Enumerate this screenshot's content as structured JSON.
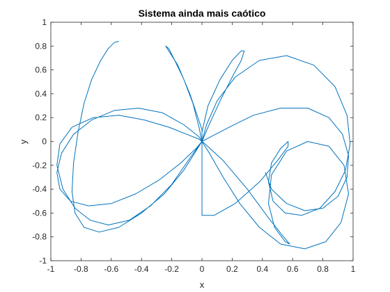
{
  "chart_data": {
    "type": "line",
    "title": "Sistema ainda mais caótico",
    "xlabel": "x",
    "ylabel": "y",
    "xlim": [
      -1,
      1
    ],
    "ylim": [
      -1,
      1
    ],
    "x_ticks": [
      -1,
      -0.8,
      -0.6,
      -0.4,
      -0.2,
      0,
      0.2,
      0.4,
      0.6,
      0.8,
      1
    ],
    "x_tick_labels": [
      "-1",
      "-0.8",
      "-0.6",
      "-0.4",
      "-0.2",
      "0",
      "0.2",
      "0.4",
      "0.6",
      "0.8",
      "1"
    ],
    "y_ticks": [
      -1,
      -0.8,
      -0.6,
      -0.4,
      -0.2,
      0,
      0.2,
      0.4,
      0.6,
      0.8,
      1
    ],
    "y_tick_labels": [
      "-1",
      "-0.8",
      "-0.6",
      "-0.4",
      "-0.2",
      "0",
      "0.2",
      "0.4",
      "0.6",
      "0.8",
      "1"
    ],
    "grid": false,
    "box": true,
    "series": [
      {
        "color": "#0072BD",
        "x": [
          -0.55,
          -0.58,
          -0.62,
          -0.67,
          -0.73,
          -0.78,
          -0.82,
          -0.85,
          -0.86,
          -0.84,
          -0.78,
          -0.68,
          -0.55,
          -0.4,
          -0.25,
          -0.12,
          -0.03,
          0.0,
          -0.02,
          -0.06,
          -0.12,
          -0.18,
          -0.22,
          -0.24,
          -0.22,
          -0.16,
          -0.08,
          0.0,
          0.0,
          0.05,
          0.14,
          0.25,
          0.38,
          0.52,
          0.68,
          0.82,
          0.92,
          0.97,
          0.94,
          0.84,
          0.7,
          0.56,
          0.46,
          0.44,
          0.48,
          0.55,
          0.58,
          0.54,
          0.44,
          0.3,
          0.14,
          0.02,
          0.0,
          -0.02,
          -0.1,
          -0.22,
          -0.38,
          -0.55,
          -0.72,
          -0.86,
          -0.94,
          -0.96,
          -0.92,
          -0.84,
          -0.74,
          -0.62,
          -0.48,
          -0.34,
          -0.2,
          -0.08,
          0.0,
          0.0,
          0.03,
          0.1,
          0.22,
          0.38,
          0.56,
          0.74,
          0.88,
          0.96,
          0.98,
          0.95,
          0.88,
          0.78,
          0.66,
          0.55,
          0.47,
          0.44,
          0.46,
          0.52,
          0.57,
          0.57,
          0.5,
          0.38,
          0.22,
          0.08,
          0.0,
          0.0,
          -0.04,
          -0.14,
          -0.28,
          -0.44,
          -0.6,
          -0.75,
          -0.87,
          -0.94,
          -0.96,
          -0.93,
          -0.85,
          -0.73,
          -0.58,
          -0.42,
          -0.26,
          -0.12,
          -0.02,
          0.0,
          0.0,
          0.04,
          0.12,
          0.2,
          0.26,
          0.28,
          0.26,
          0.2,
          0.12,
          0.04,
          0.0,
          0.0,
          0.06,
          0.18,
          0.34,
          0.52,
          0.7,
          0.84,
          0.93,
          0.97,
          0.96,
          0.9,
          0.8,
          0.68,
          0.56,
          0.46,
          0.42
        ],
        "y": [
          0.84,
          0.83,
          0.78,
          0.68,
          0.52,
          0.32,
          0.08,
          -0.18,
          -0.42,
          -0.6,
          -0.72,
          -0.76,
          -0.72,
          -0.6,
          -0.44,
          -0.24,
          -0.06,
          0.0,
          0.12,
          0.32,
          0.52,
          0.68,
          0.78,
          0.8,
          0.76,
          0.64,
          0.4,
          0.1,
          0.0,
          -0.1,
          -0.3,
          -0.52,
          -0.72,
          -0.86,
          -0.9,
          -0.84,
          -0.68,
          -0.44,
          -0.2,
          -0.04,
          0.0,
          -0.08,
          -0.28,
          -0.52,
          -0.72,
          -0.84,
          -0.86,
          -0.8,
          -0.64,
          -0.4,
          -0.16,
          -0.02,
          0.0,
          0.02,
          0.06,
          0.12,
          0.18,
          0.22,
          0.2,
          0.12,
          -0.02,
          -0.2,
          -0.4,
          -0.56,
          -0.66,
          -0.7,
          -0.66,
          -0.54,
          -0.36,
          -0.14,
          0.0,
          0.0,
          0.14,
          0.34,
          0.54,
          0.68,
          0.72,
          0.64,
          0.46,
          0.22,
          -0.02,
          -0.24,
          -0.42,
          -0.56,
          -0.62,
          -0.6,
          -0.5,
          -0.34,
          -0.18,
          -0.06,
          0.0,
          -0.04,
          -0.16,
          -0.34,
          -0.52,
          -0.62,
          -0.62,
          0.0,
          -0.06,
          -0.18,
          -0.32,
          -0.44,
          -0.52,
          -0.54,
          -0.5,
          -0.4,
          -0.26,
          -0.1,
          0.06,
          0.18,
          0.26,
          0.28,
          0.24,
          0.14,
          0.04,
          0.0,
          0.0,
          0.12,
          0.34,
          0.54,
          0.68,
          0.76,
          0.76,
          0.68,
          0.52,
          0.3,
          0.08,
          0.0,
          0.04,
          0.12,
          0.22,
          0.28,
          0.28,
          0.2,
          0.06,
          -0.12,
          -0.3,
          -0.46,
          -0.56,
          -0.58,
          -0.52,
          -0.4,
          -0.26
        ]
      }
    ]
  }
}
